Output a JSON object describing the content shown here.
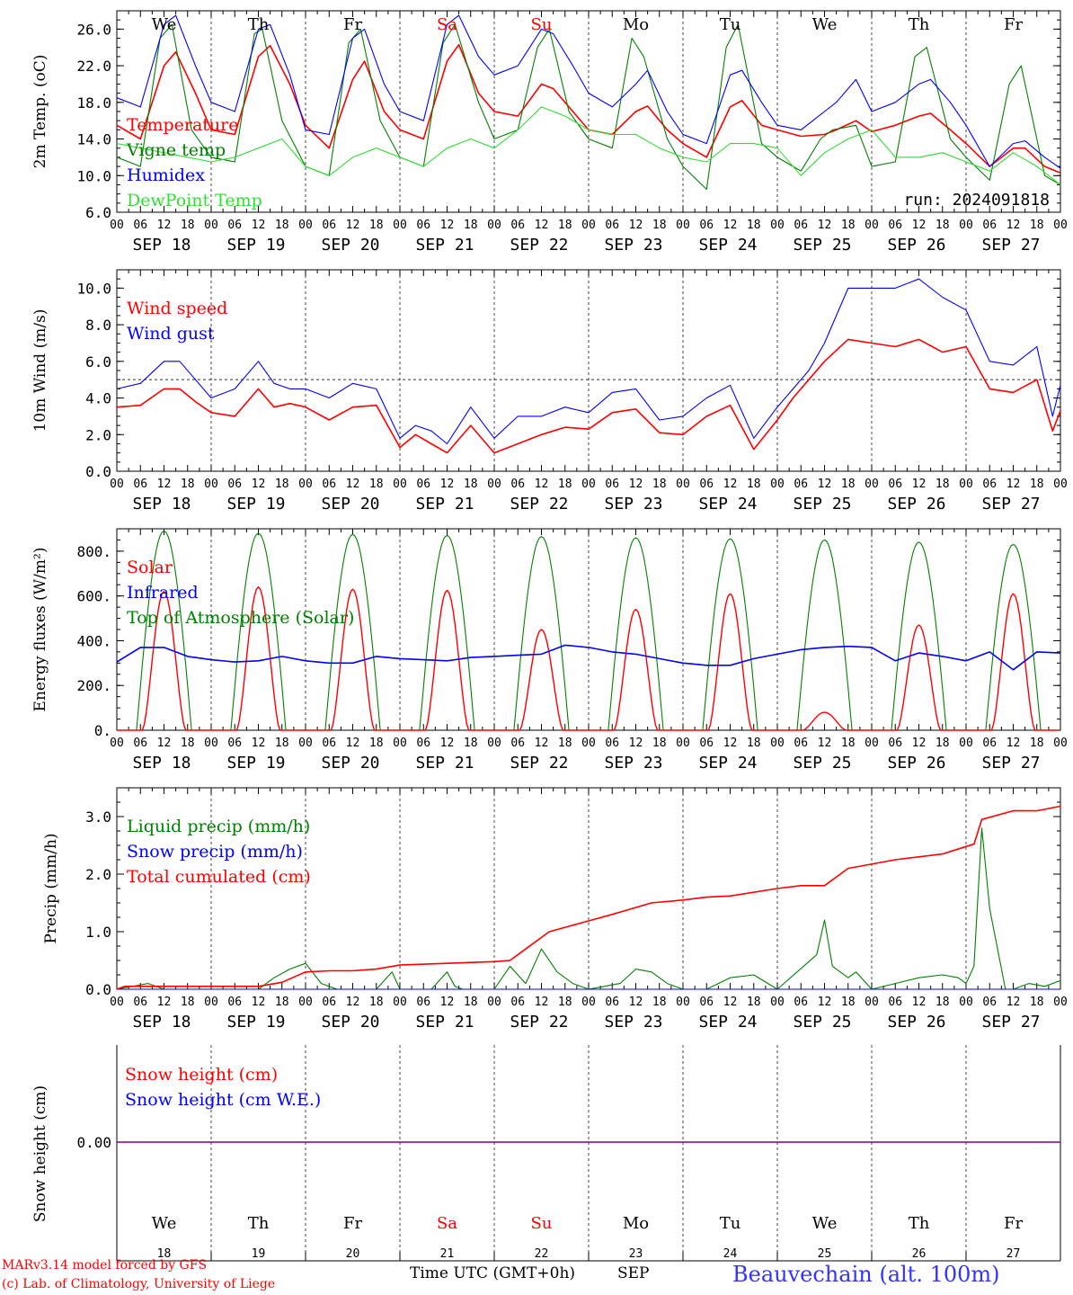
{
  "days": [
    "SEP 18",
    "SEP 19",
    "SEP 20",
    "SEP 21",
    "SEP 22",
    "SEP 23",
    "SEP 24",
    "SEP 25",
    "SEP 26",
    "SEP 27"
  ],
  "weekdays": [
    "We",
    "Th",
    "Fr",
    "Sa",
    "Su",
    "Mo",
    "Tu",
    "We",
    "Th",
    "Fr"
  ],
  "day_numbers": [
    "18",
    "19",
    "20",
    "21",
    "22",
    "23",
    "24",
    "25",
    "26",
    "27"
  ],
  "hour_ticks": [
    "00",
    "06",
    "12",
    "18"
  ],
  "hour_end": "00",
  "colors": {
    "red": "#ff0000",
    "green": "#008000",
    "blue": "#0000ff",
    "lightgreen": "#33dd33",
    "grid": "#555555",
    "purple": "#800080"
  },
  "footer": {
    "model": "MARv3.14 model forced by GFS",
    "lab": "(c) Lab. of Climatology, University of Liege",
    "xlabel": "Time UTC (GMT+0h)",
    "month": "SEP",
    "station": "Beauvechain (alt. 100m)"
  },
  "chart_data": [
    {
      "type": "line",
      "ylabel": "2m Temp. (oC)",
      "ylim": [
        6,
        28
      ],
      "yticks": [
        "26.0",
        "22.0",
        "18.0",
        "14.0",
        "10.0",
        "6.0"
      ],
      "annotation": "run: 2024091818",
      "x_unit": "hours since SEP 18 00UTC",
      "series": [
        {
          "name": "Temperature",
          "color": "#ff0000",
          "x": [
            0,
            6,
            12,
            15,
            20,
            24,
            30,
            36,
            39,
            44,
            48,
            54,
            60,
            63,
            68,
            72,
            78,
            84,
            87,
            92,
            96,
            102,
            108,
            111,
            116,
            120,
            126,
            132,
            135,
            140,
            144,
            150,
            156,
            159,
            164,
            168,
            174,
            180,
            183,
            188,
            192,
            198,
            204,
            207,
            212,
            216,
            222,
            228,
            231,
            236,
            240
          ],
          "y": [
            15.5,
            14.0,
            22.0,
            23.5,
            19.0,
            15.0,
            14.5,
            23.0,
            24.2,
            20.0,
            15.5,
            13.0,
            20.5,
            22.5,
            17.0,
            15.0,
            14.0,
            22.5,
            24.3,
            19.0,
            17.0,
            16.5,
            20.0,
            19.5,
            17.0,
            15.0,
            14.5,
            17.0,
            17.6,
            15.0,
            13.5,
            12.0,
            17.5,
            18.2,
            15.5,
            15.0,
            14.3,
            14.5,
            15.0,
            16.0,
            14.8,
            15.5,
            16.5,
            16.8,
            15.0,
            13.5,
            11.0,
            13.0,
            13.0,
            11.0,
            10.3
          ]
        },
        {
          "name": "Vigne temp",
          "color": "#008000",
          "x": [
            0,
            6,
            11,
            14,
            19,
            24,
            30,
            35,
            37,
            42,
            48,
            54,
            59,
            62,
            67,
            72,
            78,
            83,
            86,
            92,
            96,
            102,
            107,
            110,
            115,
            120,
            126,
            131,
            134,
            140,
            144,
            150,
            155,
            158,
            164,
            168,
            174,
            179,
            182,
            188,
            192,
            198,
            203,
            206,
            212,
            216,
            222,
            227,
            230,
            236,
            240
          ],
          "y": [
            12.0,
            11.0,
            25.0,
            26.5,
            15.0,
            12.0,
            11.5,
            25.5,
            26.0,
            16.0,
            11.0,
            10.0,
            24.5,
            26.0,
            16.0,
            12.0,
            11.0,
            24.5,
            26.5,
            18.0,
            14.0,
            15.0,
            24.0,
            26.0,
            17.0,
            14.0,
            13.0,
            25.0,
            23.0,
            14.0,
            11.0,
            8.5,
            24.0,
            26.5,
            13.5,
            12.0,
            10.5,
            14.0,
            15.0,
            15.5,
            11.0,
            11.5,
            23.0,
            24.0,
            14.0,
            12.0,
            9.5,
            20.0,
            22.0,
            10.0,
            9.0
          ]
        },
        {
          "name": "Humidex",
          "color": "#0000ff",
          "x": [
            0,
            6,
            12,
            15,
            20,
            24,
            30,
            36,
            39,
            44,
            48,
            54,
            60,
            63,
            68,
            72,
            78,
            84,
            87,
            92,
            96,
            102,
            108,
            111,
            116,
            120,
            126,
            132,
            135,
            140,
            144,
            150,
            156,
            159,
            164,
            168,
            174,
            180,
            183,
            188,
            192,
            198,
            204,
            207,
            212,
            216,
            222,
            228,
            231,
            236,
            240
          ],
          "y": [
            18.5,
            17.5,
            26.5,
            27.5,
            22.0,
            18.0,
            17.0,
            26.0,
            26.5,
            21.0,
            15.0,
            14.5,
            25.0,
            26.0,
            20.0,
            17.0,
            16.0,
            26.5,
            27.5,
            23.0,
            21.0,
            22.0,
            26.0,
            25.5,
            22.0,
            19.0,
            17.5,
            20.0,
            21.5,
            17.0,
            14.5,
            13.5,
            21.0,
            21.5,
            18.0,
            15.5,
            15.0,
            17.0,
            18.0,
            20.5,
            17.0,
            18.0,
            20.0,
            20.5,
            18.0,
            15.5,
            11.0,
            13.5,
            13.8,
            12.0,
            10.8
          ]
        },
        {
          "name": "DewPoint Temp",
          "color": "#33dd33",
          "x": [
            0,
            6,
            12,
            18,
            24,
            30,
            36,
            42,
            48,
            54,
            60,
            66,
            72,
            78,
            84,
            90,
            96,
            102,
            108,
            114,
            120,
            126,
            132,
            138,
            144,
            150,
            156,
            162,
            168,
            174,
            180,
            186,
            192,
            198,
            204,
            210,
            216,
            222,
            228,
            234,
            240
          ],
          "y": [
            13.5,
            13.0,
            12.5,
            12.0,
            11.5,
            12.0,
            13.0,
            14.0,
            11.0,
            10.0,
            12.0,
            13.0,
            12.0,
            11.0,
            13.0,
            14.0,
            13.0,
            15.0,
            17.5,
            16.5,
            15.0,
            14.5,
            14.5,
            13.0,
            12.0,
            11.5,
            13.5,
            13.5,
            13.0,
            10.0,
            12.5,
            14.0,
            15.0,
            12.0,
            12.0,
            12.5,
            11.5,
            10.5,
            12.5,
            11.0,
            9.0
          ]
        }
      ]
    },
    {
      "type": "line",
      "ylabel": "10m Wind (m/s)",
      "ylim": [
        0,
        11
      ],
      "yticks": [
        "10.0",
        "8.0",
        "6.0",
        "4.0",
        "2.0",
        "0.0"
      ],
      "reference_line": 5,
      "series": [
        {
          "name": "Wind speed",
          "color": "#ff0000",
          "x": [
            0,
            6,
            12,
            16,
            20,
            24,
            30,
            36,
            40,
            44,
            48,
            54,
            60,
            66,
            72,
            76,
            80,
            84,
            90,
            96,
            102,
            108,
            114,
            120,
            126,
            132,
            138,
            144,
            150,
            156,
            162,
            168,
            172,
            176,
            180,
            186,
            192,
            198,
            204,
            210,
            216,
            222,
            228,
            234,
            238,
            240
          ],
          "y": [
            3.5,
            3.6,
            4.5,
            4.5,
            3.8,
            3.2,
            3.0,
            4.5,
            3.5,
            3.7,
            3.5,
            2.8,
            3.5,
            3.6,
            1.3,
            2.0,
            1.5,
            1.0,
            2.5,
            1.0,
            1.5,
            2.0,
            2.4,
            2.3,
            3.2,
            3.4,
            2.1,
            2.0,
            3.0,
            3.6,
            1.2,
            2.8,
            4.0,
            5.0,
            6.0,
            7.2,
            7.0,
            6.8,
            7.2,
            6.5,
            6.8,
            4.5,
            4.3,
            5.0,
            2.2,
            3.3
          ]
        },
        {
          "name": "Wind gust",
          "color": "#0000ff",
          "x": [
            0,
            6,
            12,
            16,
            20,
            24,
            30,
            36,
            40,
            44,
            48,
            54,
            60,
            66,
            72,
            76,
            80,
            84,
            90,
            96,
            102,
            108,
            114,
            120,
            126,
            132,
            138,
            144,
            150,
            156,
            162,
            168,
            172,
            176,
            180,
            186,
            192,
            198,
            204,
            210,
            216,
            222,
            228,
            234,
            238,
            240
          ],
          "y": [
            4.5,
            4.8,
            6.0,
            6.0,
            5.0,
            4.0,
            4.5,
            6.0,
            4.8,
            4.5,
            4.5,
            4.0,
            4.8,
            4.5,
            1.8,
            2.5,
            2.2,
            1.5,
            3.5,
            1.8,
            3.0,
            3.0,
            3.5,
            3.2,
            4.3,
            4.5,
            2.8,
            3.0,
            4.0,
            4.7,
            1.8,
            3.5,
            4.5,
            5.5,
            7.0,
            10.0,
            10.0,
            10.0,
            10.5,
            9.5,
            8.8,
            6.0,
            5.8,
            6.8,
            3.0,
            4.7
          ]
        }
      ]
    },
    {
      "type": "line",
      "ylabel": "Energy fluxes (W/m²)",
      "ylim": [
        0,
        900
      ],
      "yticks": [
        "800.",
        "600.",
        "400.",
        "200.",
        "0."
      ],
      "solar_peaks": [
        620,
        640,
        630,
        625,
        450,
        540,
        610,
        80,
        470,
        610
      ],
      "toa_peaks": [
        890,
        880,
        875,
        870,
        865,
        860,
        855,
        850,
        840,
        830
      ],
      "series": [
        {
          "name": "Solar",
          "color": "#ff0000"
        },
        {
          "name": "Infrared",
          "color": "#0000ff",
          "x": [
            0,
            6,
            12,
            18,
            24,
            30,
            36,
            42,
            48,
            54,
            60,
            66,
            72,
            78,
            84,
            90,
            96,
            102,
            108,
            114,
            120,
            126,
            132,
            138,
            144,
            150,
            156,
            162,
            168,
            174,
            180,
            186,
            192,
            198,
            204,
            210,
            216,
            222,
            228,
            234,
            240
          ],
          "y": [
            305,
            370,
            370,
            330,
            315,
            305,
            310,
            330,
            310,
            300,
            300,
            330,
            320,
            315,
            310,
            325,
            330,
            335,
            340,
            380,
            370,
            350,
            340,
            320,
            300,
            290,
            290,
            320,
            340,
            360,
            370,
            375,
            370,
            310,
            345,
            330,
            310,
            350,
            270,
            350,
            345
          ]
        },
        {
          "name": "Top of Atmosphere (Solar)",
          "color": "#008000"
        }
      ]
    },
    {
      "type": "line",
      "ylabel": "Precip (mm/h)",
      "ylim": [
        0,
        3.5
      ],
      "yticks": [
        "3.0",
        "2.0",
        "1.0",
        "0.0"
      ],
      "series": [
        {
          "name": "Liquid precip (mm/h)",
          "color": "#008000",
          "x": [
            0,
            4,
            8,
            12,
            24,
            36,
            40,
            44,
            48,
            52,
            56,
            60,
            66,
            70,
            72,
            80,
            84,
            86,
            88,
            96,
            100,
            104,
            108,
            112,
            116,
            120,
            124,
            128,
            132,
            136,
            140,
            144,
            150,
            156,
            162,
            168,
            178,
            180,
            182,
            186,
            188,
            192,
            198,
            204,
            210,
            214,
            216,
            218,
            220,
            222,
            226,
            228,
            232,
            236,
            240
          ],
          "y": [
            0,
            0.05,
            0.1,
            0,
            0,
            0,
            0.2,
            0.35,
            0.45,
            0.1,
            0,
            0,
            0,
            0.3,
            0,
            0,
            0.3,
            0.05,
            0,
            0,
            0.4,
            0.1,
            0.7,
            0.3,
            0.1,
            0,
            0.05,
            0.1,
            0.35,
            0.3,
            0.1,
            0,
            0,
            0.2,
            0.25,
            0,
            0.6,
            1.2,
            0.4,
            0.2,
            0.3,
            0,
            0.1,
            0.2,
            0.25,
            0.2,
            0.1,
            0.4,
            2.8,
            1.4,
            0,
            0,
            0.1,
            0.05,
            0.15
          ]
        },
        {
          "name": "Snow precip (mm/h)",
          "color": "#0000ff",
          "x": [
            0,
            240
          ],
          "y": [
            0,
            0
          ]
        },
        {
          "name": "Total cumulated (cm)",
          "color": "#ff0000",
          "x": [
            0,
            2,
            10,
            36,
            42,
            48,
            54,
            60,
            66,
            72,
            80,
            84,
            96,
            100,
            104,
            110,
            118,
            126,
            136,
            144,
            150,
            156,
            168,
            174,
            180,
            186,
            198,
            204,
            210,
            216,
            218,
            220,
            228,
            234,
            240
          ],
          "y": [
            0,
            0.05,
            0.05,
            0.05,
            0.12,
            0.3,
            0.32,
            0.32,
            0.35,
            0.42,
            0.44,
            0.45,
            0.48,
            0.5,
            0.7,
            1.0,
            1.15,
            1.3,
            1.5,
            1.55,
            1.6,
            1.62,
            1.75,
            1.8,
            1.8,
            2.1,
            2.25,
            2.3,
            2.35,
            2.48,
            2.52,
            2.95,
            3.1,
            3.1,
            3.18
          ]
        }
      ]
    },
    {
      "type": "line",
      "ylabel": "Snow height (cm)",
      "yticks": [
        "0.00"
      ],
      "series": [
        {
          "name": "Snow height (cm)",
          "color": "#ff0000",
          "x": [
            0,
            240
          ],
          "y": [
            0,
            0
          ]
        },
        {
          "name": "Snow height (cm W.E.)",
          "color": "#0000ff",
          "x": [
            0,
            240
          ],
          "y": [
            0,
            0
          ]
        }
      ]
    }
  ]
}
